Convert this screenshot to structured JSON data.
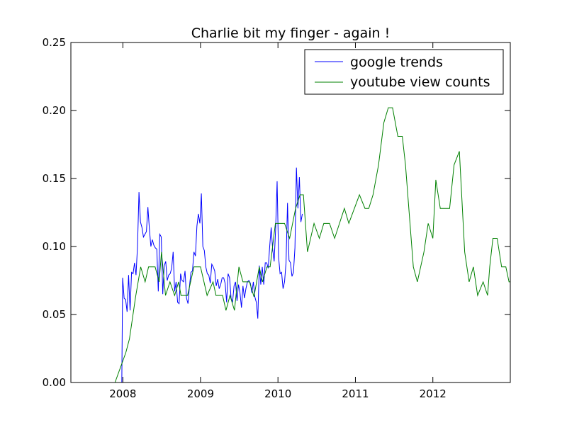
{
  "chart_data": {
    "type": "line",
    "title": "Charlie bit my finger - again !",
    "xlabel": "",
    "ylabel": "",
    "x_axis": "date",
    "xlim": [
      "2007-05-01",
      "2012-12-31"
    ],
    "ylim": [
      0,
      0.25
    ],
    "x_ticks": [
      "2008",
      "2009",
      "2010",
      "2011",
      "2012"
    ],
    "x_tick_values": [
      "2008-01-01",
      "2009-01-01",
      "2010-01-01",
      "2011-01-01",
      "2012-01-01"
    ],
    "y_ticks": [
      "0.00",
      "0.05",
      "0.10",
      "0.15",
      "0.20",
      "0.25"
    ],
    "y_tick_values": [
      0,
      0.05,
      0.1,
      0.15,
      0.2,
      0.25
    ],
    "grid": false,
    "legend_position": "top-right",
    "series": [
      {
        "name": "google trends",
        "color": "#0000ff",
        "points": [
          [
            "2007-12-27",
            0.0
          ],
          [
            "2007-12-31",
            0.077
          ],
          [
            "2008-01-07",
            0.062
          ],
          [
            "2008-01-14",
            0.061
          ],
          [
            "2008-01-21",
            0.052
          ],
          [
            "2008-01-28",
            0.079
          ],
          [
            "2008-02-04",
            0.053
          ],
          [
            "2008-02-11",
            0.081
          ],
          [
            "2008-02-18",
            0.08
          ],
          [
            "2008-02-25",
            0.088
          ],
          [
            "2008-03-03",
            0.079
          ],
          [
            "2008-03-10",
            0.1
          ],
          [
            "2008-03-17",
            0.14
          ],
          [
            "2008-03-24",
            0.118
          ],
          [
            "2008-03-31",
            0.114
          ],
          [
            "2008-04-07",
            0.107
          ],
          [
            "2008-04-14",
            0.109
          ],
          [
            "2008-04-21",
            0.111
          ],
          [
            "2008-04-28",
            0.129
          ],
          [
            "2008-05-05",
            0.113
          ],
          [
            "2008-05-12",
            0.1
          ],
          [
            "2008-05-19",
            0.105
          ],
          [
            "2008-05-26",
            0.101
          ],
          [
            "2008-06-02",
            0.099
          ],
          [
            "2008-06-09",
            0.098
          ],
          [
            "2008-06-16",
            0.067
          ],
          [
            "2008-06-23",
            0.109
          ],
          [
            "2008-06-30",
            0.107
          ],
          [
            "2008-07-07",
            0.065
          ],
          [
            "2008-07-14",
            0.086
          ],
          [
            "2008-07-21",
            0.089
          ],
          [
            "2008-07-28",
            0.075
          ],
          [
            "2008-08-04",
            0.079
          ],
          [
            "2008-08-11",
            0.08
          ],
          [
            "2008-08-18",
            0.084
          ],
          [
            "2008-08-25",
            0.096
          ],
          [
            "2008-09-01",
            0.067
          ],
          [
            "2008-09-08",
            0.074
          ],
          [
            "2008-09-15",
            0.059
          ],
          [
            "2008-09-22",
            0.058
          ],
          [
            "2008-09-29",
            0.08
          ],
          [
            "2008-10-06",
            0.075
          ],
          [
            "2008-10-13",
            0.074
          ],
          [
            "2008-10-20",
            0.082
          ],
          [
            "2008-10-27",
            0.062
          ],
          [
            "2008-11-03",
            0.058
          ],
          [
            "2008-11-10",
            0.071
          ],
          [
            "2008-11-17",
            0.081
          ],
          [
            "2008-11-24",
            0.082
          ],
          [
            "2008-12-01",
            0.096
          ],
          [
            "2008-12-08",
            0.093
          ],
          [
            "2008-12-15",
            0.115
          ],
          [
            "2008-12-22",
            0.124
          ],
          [
            "2008-12-29",
            0.117
          ],
          [
            "2009-01-05",
            0.139
          ],
          [
            "2009-01-12",
            0.1
          ],
          [
            "2009-01-19",
            0.097
          ],
          [
            "2009-01-26",
            0.085
          ],
          [
            "2009-02-02",
            0.08
          ],
          [
            "2009-02-09",
            0.079
          ],
          [
            "2009-02-16",
            0.073
          ],
          [
            "2009-02-23",
            0.087
          ],
          [
            "2009-03-02",
            0.085
          ],
          [
            "2009-03-09",
            0.082
          ],
          [
            "2009-03-16",
            0.071
          ],
          [
            "2009-03-23",
            0.076
          ],
          [
            "2009-03-30",
            0.069
          ],
          [
            "2009-04-06",
            0.072
          ],
          [
            "2009-04-13",
            0.077
          ],
          [
            "2009-04-20",
            0.077
          ],
          [
            "2009-04-27",
            0.073
          ],
          [
            "2009-05-04",
            0.059
          ],
          [
            "2009-05-11",
            0.08
          ],
          [
            "2009-05-18",
            0.077
          ],
          [
            "2009-05-25",
            0.062
          ],
          [
            "2009-06-01",
            0.059
          ],
          [
            "2009-06-08",
            0.071
          ],
          [
            "2009-06-15",
            0.074
          ],
          [
            "2009-06-22",
            0.06
          ],
          [
            "2009-06-29",
            0.072
          ],
          [
            "2009-07-06",
            0.066
          ],
          [
            "2009-07-13",
            0.055
          ],
          [
            "2009-07-20",
            0.071
          ],
          [
            "2009-07-27",
            0.062
          ],
          [
            "2009-08-03",
            0.069
          ],
          [
            "2009-08-10",
            0.074
          ],
          [
            "2009-08-17",
            0.075
          ],
          [
            "2009-08-24",
            0.073
          ],
          [
            "2009-08-31",
            0.066
          ],
          [
            "2009-09-07",
            0.074
          ],
          [
            "2009-09-14",
            0.063
          ],
          [
            "2009-09-21",
            0.059
          ],
          [
            "2009-09-28",
            0.047
          ],
          [
            "2009-10-05",
            0.086
          ],
          [
            "2009-10-12",
            0.072
          ],
          [
            "2009-10-19",
            0.085
          ],
          [
            "2009-10-26",
            0.072
          ],
          [
            "2009-11-02",
            0.088
          ],
          [
            "2009-11-09",
            0.088
          ],
          [
            "2009-11-16",
            0.084
          ],
          [
            "2009-11-23",
            0.1
          ],
          [
            "2009-11-30",
            0.114
          ],
          [
            "2009-12-07",
            0.098
          ],
          [
            "2009-12-14",
            0.089
          ],
          [
            "2009-12-21",
            0.113
          ],
          [
            "2009-12-28",
            0.148
          ],
          [
            "2010-01-04",
            0.092
          ],
          [
            "2010-01-11",
            0.08
          ],
          [
            "2010-01-18",
            0.081
          ],
          [
            "2010-01-25",
            0.069
          ],
          [
            "2010-02-01",
            0.074
          ],
          [
            "2010-02-08",
            0.088
          ],
          [
            "2010-02-15",
            0.132
          ],
          [
            "2010-02-22",
            0.09
          ],
          [
            "2010-03-01",
            0.088
          ],
          [
            "2010-03-08",
            0.078
          ],
          [
            "2010-03-15",
            0.081
          ],
          [
            "2010-03-22",
            0.099
          ],
          [
            "2010-03-29",
            0.158
          ],
          [
            "2010-04-05",
            0.128
          ],
          [
            "2010-04-12",
            0.151
          ],
          [
            "2010-04-19",
            0.118
          ],
          [
            "2010-04-26",
            0.124
          ]
        ]
      },
      {
        "name": "youtube view counts",
        "color": "#008000",
        "points": [
          [
            "2007-05-01",
            0.0
          ],
          [
            "2007-11-25",
            0.0
          ],
          [
            "2008-01-15",
            0.022
          ],
          [
            "2008-02-01",
            0.032
          ],
          [
            "2008-03-01",
            0.063
          ],
          [
            "2008-03-25",
            0.085
          ],
          [
            "2008-04-15",
            0.074
          ],
          [
            "2008-05-01",
            0.085
          ],
          [
            "2008-06-01",
            0.085
          ],
          [
            "2008-06-20",
            0.074
          ],
          [
            "2008-07-01",
            0.096
          ],
          [
            "2008-07-20",
            0.064
          ],
          [
            "2008-08-10",
            0.074
          ],
          [
            "2008-09-01",
            0.064
          ],
          [
            "2008-09-20",
            0.074
          ],
          [
            "2008-10-01",
            0.064
          ],
          [
            "2008-11-01",
            0.064
          ],
          [
            "2008-12-01",
            0.085
          ],
          [
            "2009-01-01",
            0.085
          ],
          [
            "2009-02-01",
            0.064
          ],
          [
            "2009-03-01",
            0.074
          ],
          [
            "2009-03-15",
            0.064
          ],
          [
            "2009-04-15",
            0.064
          ],
          [
            "2009-05-01",
            0.053
          ],
          [
            "2009-05-20",
            0.064
          ],
          [
            "2009-06-10",
            0.053
          ],
          [
            "2009-07-01",
            0.085
          ],
          [
            "2009-07-20",
            0.074
          ],
          [
            "2009-08-20",
            0.074
          ],
          [
            "2009-09-10",
            0.063
          ],
          [
            "2009-10-05",
            0.085
          ],
          [
            "2009-10-20",
            0.074
          ],
          [
            "2009-11-10",
            0.085
          ],
          [
            "2009-11-25",
            0.085
          ],
          [
            "2009-12-20",
            0.117
          ],
          [
            "2010-02-01",
            0.117
          ],
          [
            "2010-02-25",
            0.106
          ],
          [
            "2010-03-25",
            0.128
          ],
          [
            "2010-04-15",
            0.138
          ],
          [
            "2010-05-01",
            0.138
          ],
          [
            "2010-05-20",
            0.096
          ],
          [
            "2010-06-20",
            0.117
          ],
          [
            "2010-07-15",
            0.106
          ],
          [
            "2010-08-05",
            0.117
          ],
          [
            "2010-09-01",
            0.117
          ],
          [
            "2010-09-25",
            0.106
          ],
          [
            "2010-11-10",
            0.128
          ],
          [
            "2010-12-01",
            0.117
          ],
          [
            "2011-01-20",
            0.138
          ],
          [
            "2011-02-15",
            0.128
          ],
          [
            "2011-03-05",
            0.128
          ],
          [
            "2011-03-25",
            0.138
          ],
          [
            "2011-04-20",
            0.16
          ],
          [
            "2011-05-15",
            0.191
          ],
          [
            "2011-06-05",
            0.202
          ],
          [
            "2011-06-25",
            0.202
          ],
          [
            "2011-07-20",
            0.181
          ],
          [
            "2011-08-10",
            0.181
          ],
          [
            "2011-08-25",
            0.16
          ],
          [
            "2011-10-01",
            0.085
          ],
          [
            "2011-10-20",
            0.074
          ],
          [
            "2011-11-20",
            0.096
          ],
          [
            "2011-12-10",
            0.117
          ],
          [
            "2012-01-01",
            0.106
          ],
          [
            "2012-01-15",
            0.149
          ],
          [
            "2012-02-05",
            0.128
          ],
          [
            "2012-03-20",
            0.128
          ],
          [
            "2012-04-10",
            0.16
          ],
          [
            "2012-05-05",
            0.17
          ],
          [
            "2012-05-30",
            0.096
          ],
          [
            "2012-06-20",
            0.074
          ],
          [
            "2012-07-10",
            0.085
          ],
          [
            "2012-07-30",
            0.064
          ],
          [
            "2012-08-25",
            0.074
          ],
          [
            "2012-09-15",
            0.064
          ],
          [
            "2012-09-25",
            0.085
          ],
          [
            "2012-10-10",
            0.106
          ],
          [
            "2012-10-30",
            0.106
          ],
          [
            "2012-11-20",
            0.085
          ],
          [
            "2012-12-10",
            0.085
          ],
          [
            "2012-12-25",
            0.074
          ],
          [
            "2013-01-15",
            0.074
          ],
          [
            "2013-02-10",
            0.064
          ]
        ]
      }
    ]
  }
}
